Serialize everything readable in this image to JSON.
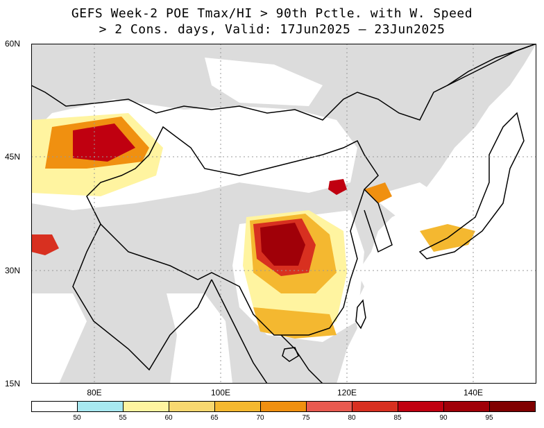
{
  "title": {
    "line1": "GEFS Week-2 POE Tmax/HI > 90th Pctle. with W. Speed",
    "line2": "> 2 Cons. days, Valid: 17Jun2025 – 23Jun2025"
  },
  "map": {
    "lat_labels": [
      "60N",
      "45N",
      "30N",
      "15N"
    ],
    "lon_labels": [
      "80E",
      "100E",
      "120E",
      "140E"
    ],
    "land_color": "#dcdcdc",
    "ocean_color": "#ffffff",
    "border_color": "#000000",
    "grid": true
  },
  "colorbar": {
    "boundaries": [
      "50",
      "55",
      "60",
      "65",
      "70",
      "75",
      "80",
      "85",
      "90",
      "95"
    ],
    "colors": [
      "#ffffff",
      "#a8e8f0",
      "#fff4a0",
      "#f8d870",
      "#f4b830",
      "#f09010",
      "#e85a50",
      "#d83020",
      "#c00010",
      "#a00008",
      "#800000"
    ]
  }
}
